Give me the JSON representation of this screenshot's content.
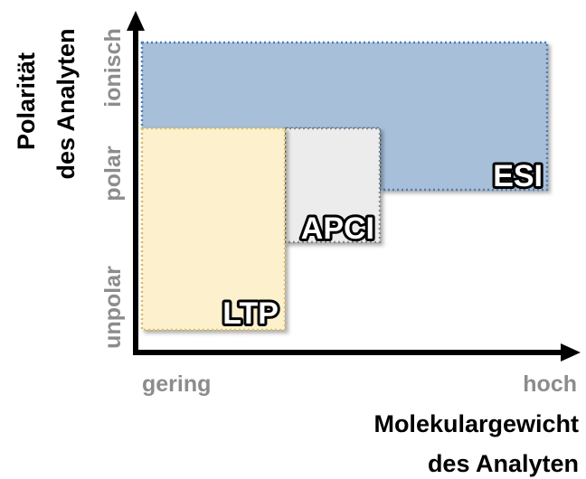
{
  "y_axis": {
    "title": [
      "Polarität",
      "des Analyten"
    ],
    "labels": [
      "ionisch",
      "polar",
      "unpolar"
    ]
  },
  "x_axis": {
    "title": [
      "Molekulargewicht",
      "des Analyten"
    ],
    "labels": [
      "gering",
      "hoch"
    ]
  },
  "regions": [
    {
      "label": "ESI"
    },
    {
      "label": "APCI"
    },
    {
      "label": "LTP"
    }
  ]
}
